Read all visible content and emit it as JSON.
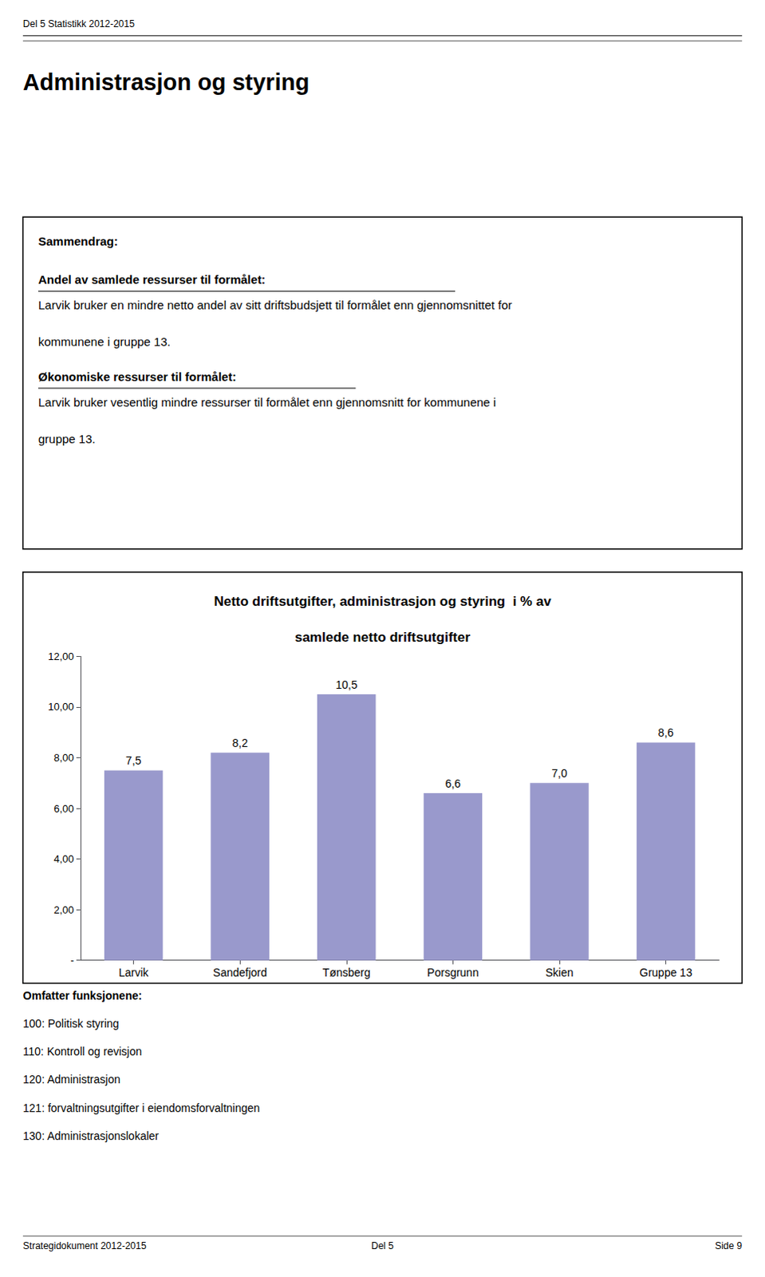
{
  "chart_data": {
    "type": "bar",
    "title": "Netto driftsutgifter, administrasjon og styring  i % av\nsamlede netto driftsutgifter",
    "categories": [
      "Larvik",
      "Sandefjord",
      "Tønsberg",
      "Porsgrunn",
      "Skien",
      "Gruppe 13"
    ],
    "values": [
      7.5,
      8.2,
      10.5,
      6.6,
      7.0,
      8.6
    ],
    "value_labels": [
      "7,5",
      "8,2",
      "10,5",
      "6,6",
      "7,0",
      "8,6"
    ],
    "data_labels": true,
    "color": "#9999cc",
    "ylim": [
      0,
      12
    ],
    "yticks": [
      {
        "value": 0,
        "label": "-"
      },
      {
        "value": 2.0,
        "label": "2,00"
      },
      {
        "value": 4.0,
        "label": "4,00"
      },
      {
        "value": 6.0,
        "label": "6,00"
      },
      {
        "value": 8.0,
        "label": "8,00"
      },
      {
        "value": 10.0,
        "label": "10,00"
      },
      {
        "value": 12.0,
        "label": "12,00"
      }
    ],
    "grid": false,
    "annotations": [
      "Del 5 Statistikk 2012-2015",
      "Administrasjon og styring",
      "Sammendrag:",
      "Andel av samlede ressurser til formålet:",
      "Larvik bruker en mindre netto andel av sitt driftsbudsjett til formålet enn gjennomsnittet for",
      "kommunene i gruppe 13.",
      "Økonomiske ressurser til formålet:",
      "Larvik bruker vesentlig mindre ressurser til formålet enn gjennomsnitt for kommunene i",
      "gruppe 13.",
      "Omfatter funksjonene:",
      "100: Politisk styring",
      "110: Kontroll og revisjon",
      "120: Administrasjon",
      "121: forvaltningsutgifter i eiendomsforvaltningen",
      "130: Administrasjonslokaler",
      "Strategidokument 2012-2015",
      "Del 5",
      "Side 9"
    ]
  }
}
